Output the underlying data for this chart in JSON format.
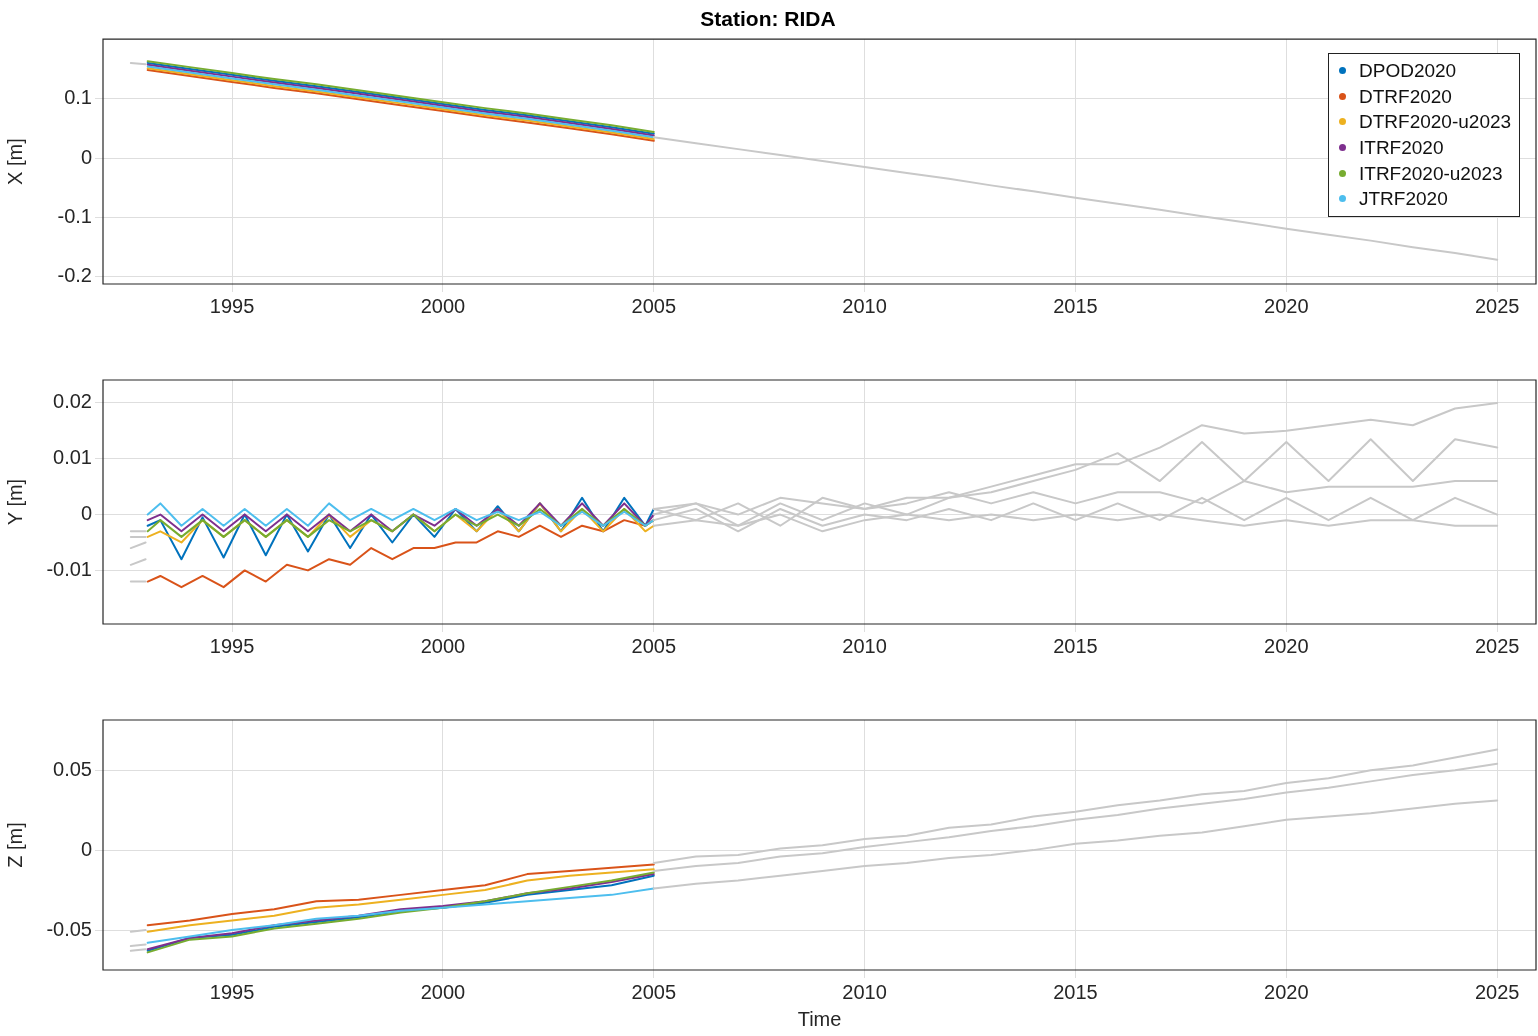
{
  "chart_data": [
    {
      "type": "line",
      "title": "Station: RIDA",
      "ylabel": "X [m]",
      "xlim": [
        1991.94,
        2025.92
      ],
      "xticks": [
        1995,
        2000,
        2005,
        2010,
        2015,
        2020,
        2025
      ],
      "ylim": [
        -0.212,
        0.2
      ],
      "yticks": [
        -0.2,
        -0.1,
        0,
        0.1
      ],
      "grid": true,
      "legend": "top right",
      "x": [
        1993,
        1994,
        1995,
        1996,
        1997,
        1998,
        1999,
        2000,
        2001,
        2002,
        2003,
        2004,
        2005
      ],
      "series": [
        {
          "name": "DPOD2020",
          "color": "#0072bd",
          "values": [
            0.16,
            0.15,
            0.14,
            0.13,
            0.121,
            0.111,
            0.101,
            0.091,
            0.081,
            0.072,
            0.062,
            0.052,
            0.041
          ]
        },
        {
          "name": "DTRF2020",
          "color": "#d95319",
          "values": [
            0.148,
            0.138,
            0.128,
            0.118,
            0.109,
            0.099,
            0.089,
            0.079,
            0.069,
            0.06,
            0.05,
            0.04,
            0.029
          ]
        },
        {
          "name": "DTRF2020-u2023",
          "color": "#edb120",
          "values": [
            0.151,
            0.141,
            0.131,
            0.121,
            0.112,
            0.102,
            0.092,
            0.082,
            0.072,
            0.063,
            0.053,
            0.043,
            0.032
          ]
        },
        {
          "name": "ITRF2020",
          "color": "#7e2f8e",
          "values": [
            0.157,
            0.147,
            0.137,
            0.127,
            0.118,
            0.108,
            0.098,
            0.088,
            0.078,
            0.069,
            0.059,
            0.049,
            0.038
          ]
        },
        {
          "name": "ITRF2020-u2023",
          "color": "#77ac30",
          "values": [
            0.163,
            0.153,
            0.143,
            0.133,
            0.124,
            0.114,
            0.104,
            0.094,
            0.084,
            0.075,
            0.065,
            0.055,
            0.044
          ]
        },
        {
          "name": "JTRF2020",
          "color": "#4dbeee",
          "values": [
            0.154,
            0.144,
            0.134,
            0.124,
            0.115,
            0.105,
            0.095,
            0.085,
            0.075,
            0.066,
            0.056,
            0.046,
            0.035
          ]
        },
        {
          "color": "#c8c8c8",
          "x": [
            1992.6,
            1992.95,
            1999,
            2005,
            2006,
            2007,
            2008,
            2009,
            2010,
            2011,
            2012,
            2013,
            2014,
            2015,
            2016,
            2017,
            2018,
            2019,
            2020,
            2021,
            2022,
            2023,
            2024,
            2025
          ],
          "values": [
            0.16,
            0.158,
            null,
            0.035,
            0.025,
            0.015,
            0.005,
            -0.005,
            -0.015,
            -0.025,
            -0.035,
            -0.046,
            -0.056,
            -0.067,
            -0.077,
            -0.087,
            -0.098,
            -0.108,
            -0.119,
            -0.129,
            -0.139,
            -0.15,
            -0.16,
            -0.171
          ]
        }
      ]
    },
    {
      "type": "line",
      "ylabel": "Y [m]",
      "xlim": [
        1991.94,
        2025.92
      ],
      "xticks": [
        1995,
        2000,
        2005,
        2010,
        2015,
        2020,
        2025
      ],
      "ylim": [
        -0.0196,
        0.0241
      ],
      "yticks": [
        -0.01,
        0,
        0.01,
        0.02
      ],
      "grid": true,
      "x": [
        1993,
        1993.3,
        1993.8,
        1994.3,
        1994.8,
        1995.3,
        1995.8,
        1996.3,
        1996.8,
        1997.3,
        1997.8,
        1998.3,
        1998.8,
        1999.3,
        1999.8,
        2000.3,
        2000.8,
        2001.3,
        2001.8,
        2002.3,
        2002.8,
        2003.3,
        2003.8,
        2004.3,
        2004.8,
        2005
      ],
      "series": [
        {
          "color": "#0072bd",
          "values": [
            -0.002,
            -0.001,
            -0.008,
            -0.0005,
            -0.0077,
            0,
            -0.0073,
            0,
            -0.0066,
            0,
            -0.006,
            0,
            -0.005,
            0,
            -0.004,
            0.001,
            -0.003,
            0.0015,
            -0.003,
            0.002,
            -0.003,
            0.003,
            -0.003,
            0.003,
            -0.002,
            0.001
          ]
        },
        {
          "color": "#d95319",
          "values": [
            -0.012,
            -0.011,
            -0.013,
            -0.011,
            -0.013,
            -0.01,
            -0.012,
            -0.009,
            -0.01,
            -0.008,
            -0.009,
            -0.006,
            -0.008,
            -0.006,
            -0.006,
            -0.005,
            -0.005,
            -0.003,
            -0.004,
            -0.002,
            -0.004,
            -0.002,
            -0.003,
            -0.001,
            -0.002,
            -0.001
          ]
        },
        {
          "color": "#edb120",
          "values": [
            -0.004,
            -0.003,
            -0.005,
            -0.001,
            -0.004,
            -0.001,
            -0.004,
            -0.001,
            -0.004,
            0,
            -0.004,
            -0.001,
            -0.003,
            0,
            -0.003,
            0,
            -0.003,
            0.001,
            -0.003,
            0.002,
            -0.003,
            0.001,
            -0.003,
            0.001,
            -0.003,
            -0.002
          ]
        },
        {
          "color": "#7e2f8e",
          "values": [
            -0.001,
            0,
            -0.003,
            0,
            -0.003,
            0,
            -0.003,
            0,
            -0.003,
            0,
            -0.003,
            0,
            -0.003,
            0,
            -0.002,
            0.001,
            -0.002,
            0.001,
            -0.002,
            0.002,
            -0.002,
            0.002,
            -0.002,
            0.002,
            -0.002,
            0
          ]
        },
        {
          "color": "#77ac30",
          "values": [
            -0.003,
            -0.001,
            -0.004,
            -0.001,
            -0.004,
            -0.001,
            -0.004,
            -0.001,
            -0.004,
            -0.001,
            -0.003,
            -0.001,
            -0.003,
            0,
            -0.003,
            0,
            -0.002,
            0,
            -0.002,
            0.001,
            -0.002,
            0.001,
            -0.002,
            0.001,
            -0.002,
            -0.001
          ]
        },
        {
          "color": "#4dbeee",
          "values": [
            0,
            0.002,
            -0.002,
            0.001,
            -0.002,
            0.001,
            -0.002,
            0.001,
            -0.002,
            0.002,
            -0.001,
            0.001,
            -0.001,
            0.001,
            -0.001,
            0.001,
            -0.001,
            0.0005,
            -0.001,
            0.0005,
            -0.002,
            0.0005,
            -0.002,
            0.0005,
            -0.002,
            -0.001
          ]
        },
        {
          "color": "#c8c8c8",
          "x": [
            1992.6,
            1992.95,
            1999,
            2005,
            2006,
            2007,
            2008,
            2009,
            2010,
            2011,
            2012,
            2013,
            2014,
            2015,
            2016,
            2017,
            2018,
            2019,
            2020,
            2021,
            2022,
            2023,
            2024,
            2025
          ],
          "values": [
            -0.012,
            -0.012,
            null,
            0.001,
            0.002,
            0,
            0.003,
            0.002,
            0.001,
            0.003,
            0.003,
            0.005,
            0.007,
            0.009,
            0.009,
            0.012,
            0.016,
            0.0145,
            0.015,
            0.016,
            0.017,
            0.016,
            0.019,
            0.02
          ]
        },
        {
          "color": "#c8c8c8",
          "x": [
            1992.6,
            1992.95,
            1999,
            2005,
            2006,
            2007,
            2008,
            2009,
            2010,
            2011,
            2012,
            2013,
            2014,
            2015,
            2016,
            2017,
            2018,
            2019,
            2020,
            2021,
            2022,
            2023,
            2024,
            2025
          ],
          "values": [
            -0.003,
            -0.003,
            null,
            0,
            0.002,
            -0.002,
            0.002,
            -0.001,
            0.002,
            0,
            0.003,
            0.004,
            0.006,
            0.008,
            0.011,
            0.006,
            0.013,
            0.006,
            0.013,
            0.006,
            0.0135,
            0.006,
            0.0135,
            0.012
          ]
        },
        {
          "color": "#c8c8c8",
          "x": [
            1992.6,
            1992.95,
            1999,
            2005,
            2006,
            2007,
            2008,
            2009,
            2010,
            2011,
            2012,
            2013,
            2014,
            2015,
            2016,
            2017,
            2018,
            2019,
            2020,
            2021,
            2022,
            2023,
            2024,
            2025
          ],
          "values": [
            -0.004,
            -0.004,
            null,
            0.001,
            -0.001,
            0.002,
            -0.002,
            0.003,
            0.001,
            0.002,
            0.004,
            0.002,
            0.004,
            0.002,
            0.004,
            0.004,
            0.002,
            0.006,
            0.004,
            0.005,
            0.005,
            0.005,
            0.006,
            0.006
          ]
        },
        {
          "color": "#c8c8c8",
          "x": [
            1992.6,
            1992.95,
            1999,
            2005,
            2006,
            2007,
            2008,
            2009,
            2010,
            2011,
            2012,
            2013,
            2014,
            2015,
            2016,
            2017,
            2018,
            2019,
            2020,
            2021,
            2022,
            2023,
            2024,
            2025
          ],
          "values": [
            -0.006,
            -0.005,
            null,
            -0.001,
            0.001,
            -0.003,
            0.001,
            -0.002,
            0,
            -0.001,
            0.001,
            -0.001,
            0.002,
            -0.001,
            0.002,
            -0.001,
            0.003,
            -0.001,
            0.003,
            -0.001,
            0.003,
            -0.001,
            0.003,
            0
          ]
        },
        {
          "color": "#c8c8c8",
          "x": [
            1992.6,
            1992.95,
            1999,
            2005,
            2006,
            2007,
            2008,
            2009,
            2010,
            2011,
            2012,
            2013,
            2014,
            2015,
            2016,
            2017,
            2018,
            2019,
            2020,
            2021,
            2022,
            2023,
            2024,
            2025
          ],
          "values": [
            -0.009,
            -0.008,
            null,
            -0.002,
            -0.001,
            -0.002,
            0,
            -0.003,
            -0.001,
            0,
            -0.001,
            0,
            -0.001,
            0,
            -0.001,
            0,
            -0.001,
            -0.002,
            -0.001,
            -0.002,
            -0.001,
            -0.001,
            -0.002,
            -0.002
          ]
        }
      ]
    },
    {
      "type": "line",
      "xlabel": "Time",
      "ylabel": "Z [m]",
      "xlim": [
        1991.94,
        2025.92
      ],
      "xticks": [
        1995,
        2000,
        2005,
        2010,
        2015,
        2020,
        2025
      ],
      "ylim": [
        -0.075,
        0.0814
      ],
      "yticks": [
        -0.05,
        0,
        0.05
      ],
      "grid": true,
      "x": [
        1993,
        1994,
        1995,
        1996,
        1997,
        1998,
        1999,
        2000,
        2001,
        2002,
        2003,
        2004,
        2005
      ],
      "series": [
        {
          "color": "#0072bd",
          "values": [
            -0.063,
            -0.055,
            -0.053,
            -0.048,
            -0.045,
            -0.042,
            -0.038,
            -0.036,
            -0.033,
            -0.028,
            -0.025,
            -0.022,
            -0.016
          ]
        },
        {
          "color": "#d95319",
          "values": [
            -0.047,
            -0.044,
            -0.04,
            -0.037,
            -0.032,
            -0.031,
            -0.028,
            -0.025,
            -0.022,
            -0.015,
            -0.013,
            -0.011,
            -0.009
          ]
        },
        {
          "color": "#edb120",
          "values": [
            -0.051,
            -0.047,
            -0.044,
            -0.041,
            -0.036,
            -0.034,
            -0.031,
            -0.028,
            -0.025,
            -0.019,
            -0.016,
            -0.014,
            -0.012
          ]
        },
        {
          "color": "#7e2f8e",
          "values": [
            -0.062,
            -0.055,
            -0.052,
            -0.047,
            -0.044,
            -0.041,
            -0.037,
            -0.035,
            -0.032,
            -0.027,
            -0.024,
            -0.02,
            -0.015
          ]
        },
        {
          "color": "#77ac30",
          "values": [
            -0.064,
            -0.056,
            -0.054,
            -0.049,
            -0.046,
            -0.043,
            -0.039,
            -0.036,
            -0.032,
            -0.027,
            -0.023,
            -0.019,
            -0.014
          ]
        },
        {
          "color": "#4dbeee",
          "values": [
            -0.058,
            -0.054,
            -0.05,
            -0.047,
            -0.043,
            -0.041,
            -0.038,
            -0.036,
            -0.034,
            -0.032,
            -0.03,
            -0.028,
            -0.024
          ]
        },
        {
          "color": "#c8c8c8",
          "x": [
            1992.6,
            1992.95,
            1999,
            2005,
            2006,
            2007,
            2008,
            2009,
            2010,
            2011,
            2012,
            2013,
            2014,
            2015,
            2016,
            2017,
            2018,
            2019,
            2020,
            2021,
            2022,
            2023,
            2024,
            2025
          ],
          "values": [
            -0.051,
            -0.05,
            null,
            -0.008,
            -0.004,
            -0.003,
            0.001,
            0.003,
            0.007,
            0.009,
            0.014,
            0.016,
            0.021,
            0.024,
            0.028,
            0.031,
            0.035,
            0.037,
            0.042,
            0.045,
            0.05,
            0.053,
            0.058,
            0.063
          ]
        },
        {
          "color": "#c8c8c8",
          "x": [
            1992.6,
            1992.95,
            1999,
            2005,
            2006,
            2007,
            2008,
            2009,
            2010,
            2011,
            2012,
            2013,
            2014,
            2015,
            2016,
            2017,
            2018,
            2019,
            2020,
            2021,
            2022,
            2023,
            2024,
            2025
          ],
          "values": [
            -0.06,
            -0.059,
            null,
            -0.013,
            -0.01,
            -0.008,
            -0.004,
            -0.002,
            0.002,
            0.005,
            0.008,
            0.012,
            0.015,
            0.019,
            0.022,
            0.026,
            0.029,
            0.032,
            0.036,
            0.039,
            0.043,
            0.047,
            0.05,
            0.054
          ]
        },
        {
          "color": "#c8c8c8",
          "x": [
            1992.6,
            1992.95,
            1999,
            2005,
            2006,
            2007,
            2008,
            2009,
            2010,
            2011,
            2012,
            2013,
            2014,
            2015,
            2016,
            2017,
            2018,
            2019,
            2020,
            2021,
            2022,
            2023,
            2024,
            2025
          ],
          "values": [
            -0.063,
            -0.062,
            null,
            -0.024,
            -0.021,
            -0.019,
            -0.016,
            -0.013,
            -0.01,
            -0.008,
            -0.005,
            -0.003,
            0,
            0.004,
            0.006,
            0.009,
            0.011,
            0.015,
            0.019,
            0.021,
            0.023,
            0.026,
            0.029,
            0.031
          ]
        }
      ]
    }
  ]
}
